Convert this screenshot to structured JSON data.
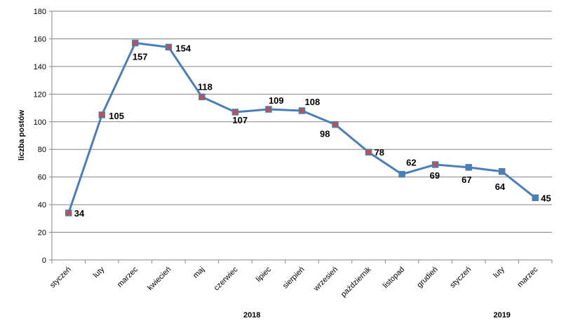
{
  "chart_data": {
    "type": "line",
    "ylabel": "liczba postów",
    "ylim": [
      0,
      180
    ],
    "yticks": [
      0,
      20,
      40,
      60,
      80,
      100,
      120,
      140,
      160,
      180
    ],
    "grid": true,
    "categories": [
      "styczeń",
      "luty",
      "marzec",
      "kwiecień",
      "maj",
      "czerwiec",
      "lipiec",
      "sierpień",
      "wrzesień",
      "październik",
      "listopad",
      "grudień",
      "styczeń",
      "luty",
      "marzec"
    ],
    "year_groups": [
      {
        "label": "2018",
        "from": 0,
        "to": 11
      },
      {
        "label": "2019",
        "from": 12,
        "to": 14
      }
    ],
    "series": [
      {
        "values": [
          34,
          105,
          157,
          154,
          118,
          107,
          109,
          108,
          98,
          78,
          62,
          69,
          67,
          64,
          45
        ],
        "line_color": "#4a7ebb",
        "marker_color": "#c0504d"
      }
    ],
    "data_labels": [
      "34",
      "105",
      "157",
      "154",
      "118",
      "107",
      "109",
      "108",
      "98",
      "78",
      "62",
      "69",
      "67",
      "64",
      "45"
    ]
  }
}
